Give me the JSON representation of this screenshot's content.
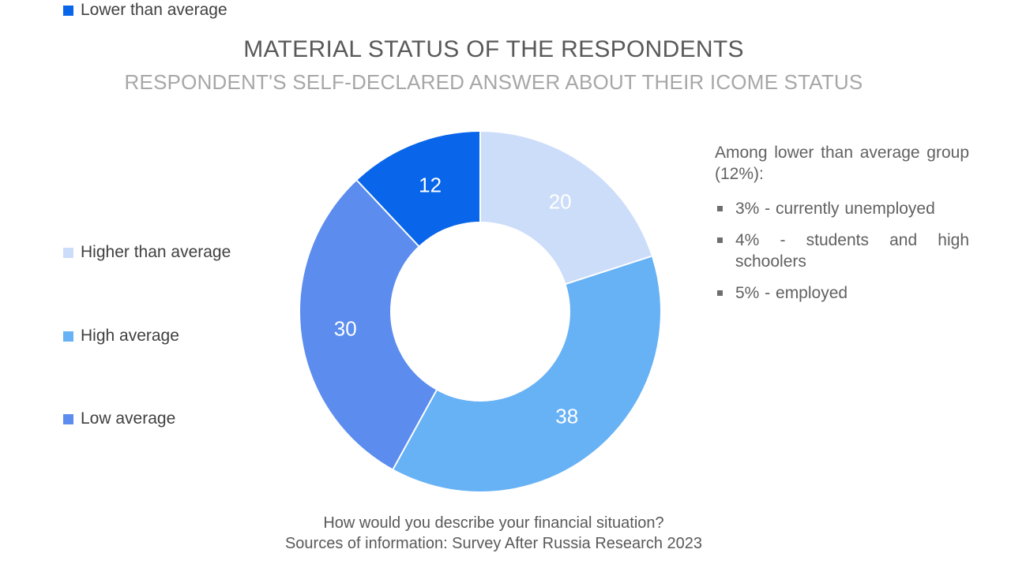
{
  "header": {
    "title": "MATERIAL STATUS OF THE RESPONDENTS",
    "subtitle": "RESPONDENT'S SELF-DECLARED ANSWER ABOUT THEIR ICOME STATUS"
  },
  "chart_data": {
    "type": "pie",
    "subtype": "donut",
    "title": "MATERIAL STATUS OF THE RESPONDENTS",
    "categories": [
      "Higher than average",
      "High average",
      "Low average",
      "Lower than average"
    ],
    "values": [
      20,
      38,
      30,
      12
    ],
    "colors": [
      "#ccddf9",
      "#67b1f5",
      "#5b8cee",
      "#0965e9"
    ],
    "data_label_color": "#ffffff",
    "donut_hole_ratio": 0.5,
    "start_angle_deg": 0,
    "direction": "clockwise",
    "legend_position": "left",
    "grid": "off"
  },
  "legend": {
    "items": [
      {
        "label": "Higher than average",
        "color": "#ccddf9"
      },
      {
        "label": "High average",
        "color": "#67b1f5"
      },
      {
        "label": "Low average",
        "color": "#5b8cee"
      },
      {
        "label": "Lower than average",
        "color": "#0965e9"
      }
    ]
  },
  "annotation": {
    "heading": "Among lower than average group (12%):",
    "bullets": [
      "3% - currently unemployed",
      "4% - students and high schoolers",
      "5% - employed"
    ]
  },
  "footer": {
    "question": "How would you describe your financial situation?",
    "source": "Sources of information: Survey After Russia Research 2023"
  }
}
